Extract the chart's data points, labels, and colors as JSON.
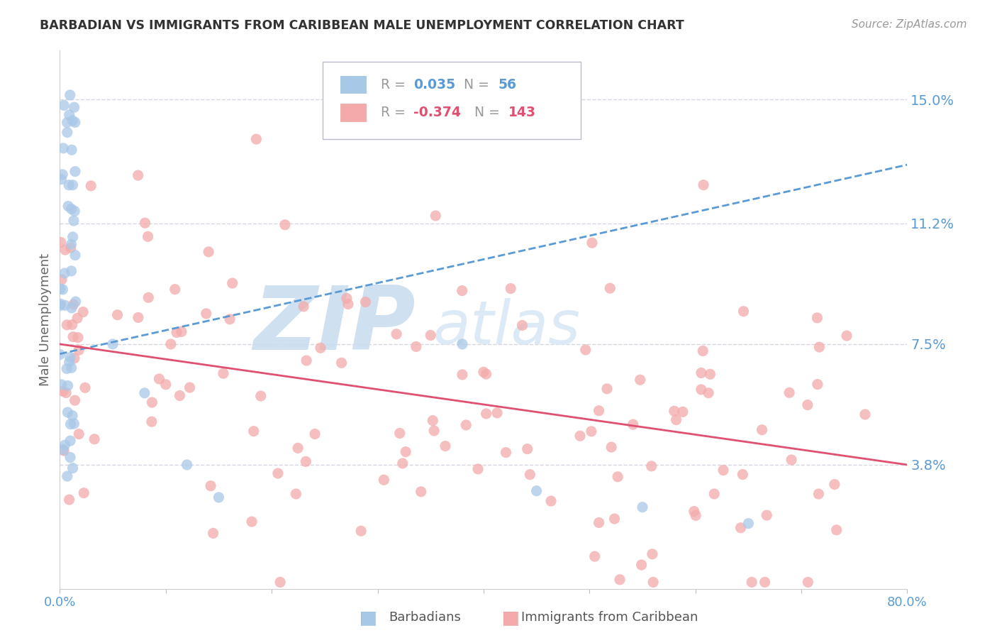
{
  "title": "BARBADIAN VS IMMIGRANTS FROM CARIBBEAN MALE UNEMPLOYMENT CORRELATION CHART",
  "source": "Source: ZipAtlas.com",
  "ylabel": "Male Unemployment",
  "ytick_labels": [
    "15.0%",
    "11.2%",
    "7.5%",
    "3.8%"
  ],
  "ytick_values": [
    0.15,
    0.112,
    0.075,
    0.038
  ],
  "xmin": 0.0,
  "xmax": 0.8,
  "ymin": 0.0,
  "ymax": 0.165,
  "barbadian_color": "#A8C8E8",
  "caribbean_color": "#F4AAAA",
  "trendline_barbadian_color": "#5B9BD5",
  "trendline_caribbean_color": "#E05070",
  "watermark_zip_color": "#CADDF0",
  "watermark_atlas_color": "#D8E8F5",
  "background_color": "#FFFFFF",
  "grid_color": "#CCCCDD",
  "title_color": "#333333",
  "axis_label_color": "#5B9BD5",
  "source_color": "#999999",
  "legend_r_color_blue": "#5B9BD5",
  "legend_n_color_blue": "#5B9BD5",
  "legend_r_color_pink": "#E05070",
  "legend_n_color_pink": "#E05070",
  "legend_gray": "#999999"
}
